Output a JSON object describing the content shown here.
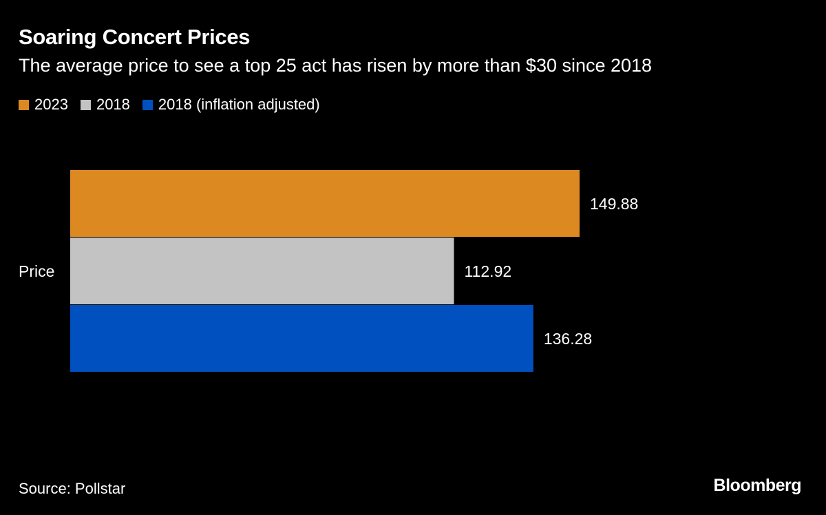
{
  "colors": {
    "background": "#000000",
    "text": "#ffffff"
  },
  "chart_data": {
    "type": "bar",
    "orientation": "horizontal",
    "title": "Soaring Concert Prices",
    "subtitle": "The average price to see a top 25 act has risen by more than $30 since 2018",
    "categories": [
      "Price"
    ],
    "series": [
      {
        "name": "2023",
        "color": "#dc8922",
        "values": [
          149.88
        ],
        "label": "149.88"
      },
      {
        "name": "2018",
        "color": "#c3c3c3",
        "values": [
          112.92
        ],
        "label": "112.92"
      },
      {
        "name": "2018 (inflation adjusted)",
        "color": "#0050c0",
        "values": [
          136.28
        ],
        "label": "136.28"
      }
    ],
    "xlim": [
      0,
      149.88
    ],
    "grid": false,
    "legend_position": "top-left",
    "source": "Source: Pollstar",
    "brand": "Bloomberg"
  }
}
